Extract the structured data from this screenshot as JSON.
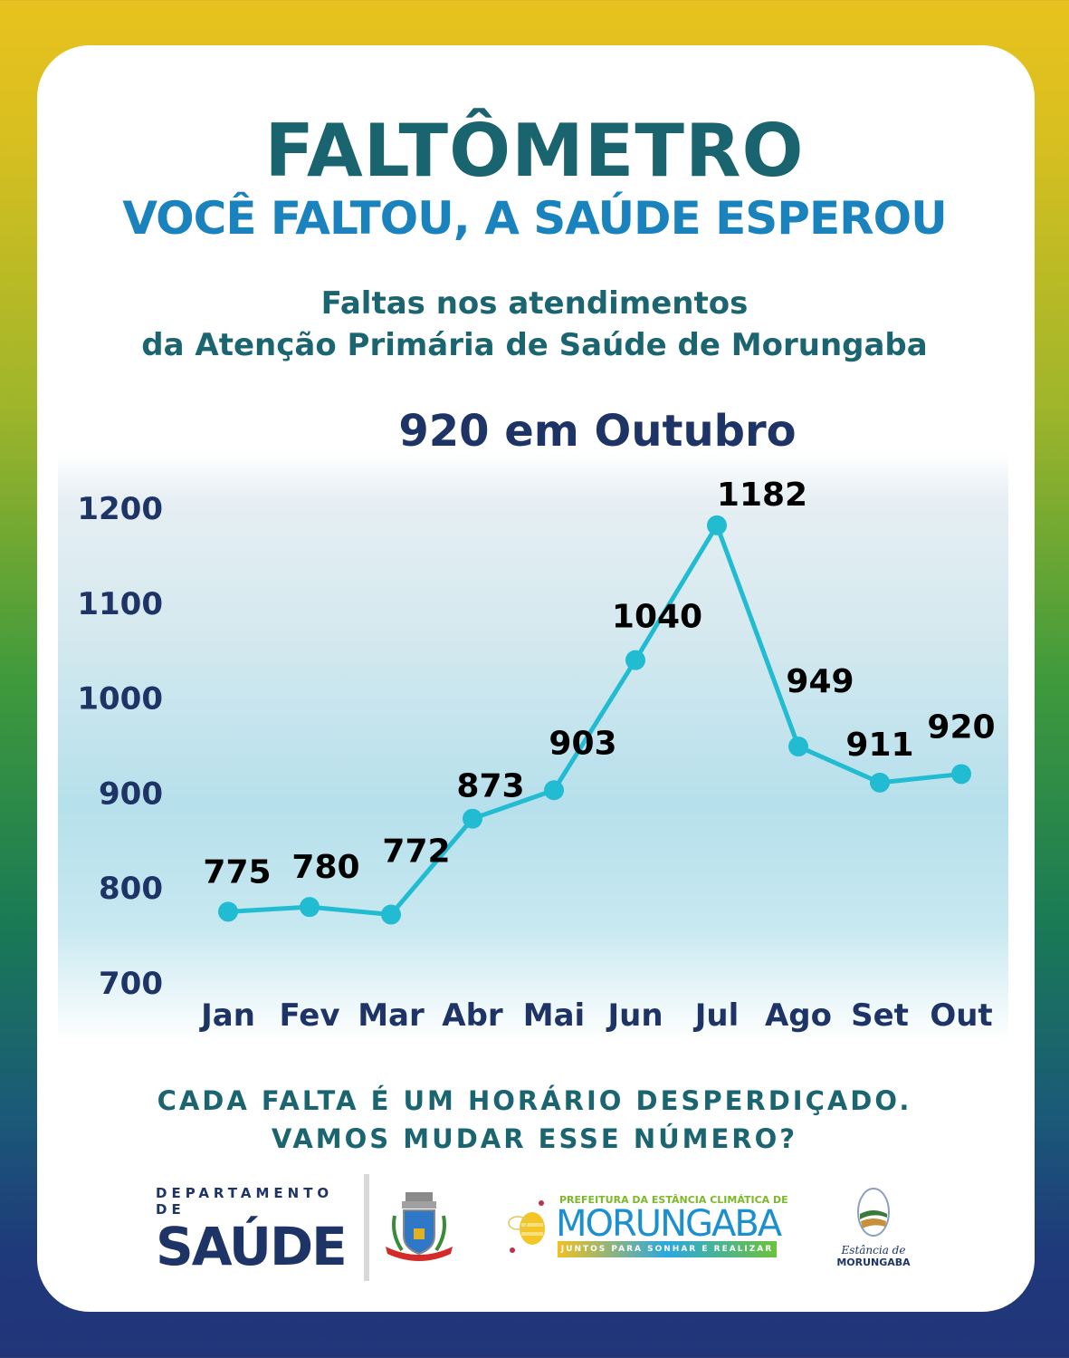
{
  "header": {
    "title": "FALTÔMETRO",
    "subtitle": "VOCÊ FALTOU, A SAÚDE ESPEROU",
    "description_line1": "Faltas nos atendimentos",
    "description_line2": "da Atenção Primária de Saúde de Morungaba",
    "headline": "920 em Outubro"
  },
  "chart_data": {
    "type": "line",
    "title": "920 em Outubro",
    "categories": [
      "Jan",
      "Fev",
      "Mar",
      "Abr",
      "Mai",
      "Jun",
      "Jul",
      "Ago",
      "Set",
      "Out"
    ],
    "values": [
      775,
      780,
      772,
      873,
      903,
      1040,
      1182,
      949,
      911,
      920
    ],
    "yticks": [
      700,
      800,
      900,
      1000,
      1100,
      1200
    ],
    "ylim": [
      700,
      1200
    ],
    "xlabel": "",
    "ylabel": "",
    "grid": false,
    "legend": "none",
    "colors": {
      "line": "#22bcd2",
      "marker": "#22bcd2",
      "axis_text": "#1e3466",
      "value_labels": "#000000"
    }
  },
  "footer": {
    "cta_line1": "CADA FALTA É UM HORÁRIO DESPERDIÇADO.",
    "cta_line2": "VAMOS MUDAR ESSE NÚMERO?"
  },
  "logos": {
    "dept_small": "DEPARTAMENTO DE",
    "dept_big": "SAÚDE",
    "prefeitura_top": "PREFEITURA DA ESTÂNCIA CLIMÁTICA DE",
    "prefeitura_name": "MORUNGABA",
    "prefeitura_slogan": "JUNTOS PARA SONHAR E REALIZAR",
    "estancia_script": "Estância de",
    "estancia_name": "MORUNGABA"
  }
}
